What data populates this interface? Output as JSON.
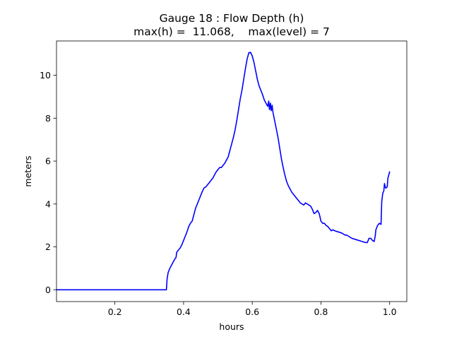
{
  "chart_data": {
    "type": "line",
    "title": "Gauge 18 : Flow Depth (h)",
    "subtitle": "max(h) =  11.068,    max(level) = 7",
    "xlabel": "hours",
    "ylabel": "meters",
    "xlim": [
      0.03,
      1.05
    ],
    "ylim": [
      -0.55,
      11.6
    ],
    "xticks": [
      0.2,
      0.4,
      0.6,
      0.8,
      1.0
    ],
    "xtick_labels": [
      "0.2",
      "0.4",
      "0.6",
      "0.8",
      "1.0"
    ],
    "yticks": [
      0,
      2,
      4,
      6,
      8,
      10
    ],
    "ytick_labels": [
      "0",
      "2",
      "4",
      "6",
      "8",
      "10"
    ],
    "grid": false,
    "series": [
      {
        "color": "#0000ff",
        "points": [
          [
            0.03,
            0.0
          ],
          [
            0.1,
            0.0
          ],
          [
            0.2,
            0.0
          ],
          [
            0.3,
            0.0
          ],
          [
            0.35,
            0.0
          ],
          [
            0.352,
            0.5
          ],
          [
            0.355,
            0.8
          ],
          [
            0.36,
            1.0
          ],
          [
            0.365,
            1.15
          ],
          [
            0.37,
            1.3
          ],
          [
            0.375,
            1.45
          ],
          [
            0.378,
            1.5
          ],
          [
            0.38,
            1.75
          ],
          [
            0.385,
            1.85
          ],
          [
            0.39,
            1.95
          ],
          [
            0.395,
            2.1
          ],
          [
            0.4,
            2.3
          ],
          [
            0.405,
            2.5
          ],
          [
            0.41,
            2.7
          ],
          [
            0.415,
            2.95
          ],
          [
            0.42,
            3.1
          ],
          [
            0.425,
            3.2
          ],
          [
            0.43,
            3.5
          ],
          [
            0.435,
            3.8
          ],
          [
            0.44,
            4.0
          ],
          [
            0.445,
            4.2
          ],
          [
            0.45,
            4.4
          ],
          [
            0.455,
            4.6
          ],
          [
            0.46,
            4.75
          ],
          [
            0.465,
            4.8
          ],
          [
            0.47,
            4.9
          ],
          [
            0.475,
            5.0
          ],
          [
            0.48,
            5.1
          ],
          [
            0.485,
            5.2
          ],
          [
            0.49,
            5.35
          ],
          [
            0.495,
            5.5
          ],
          [
            0.5,
            5.6
          ],
          [
            0.505,
            5.7
          ],
          [
            0.51,
            5.7
          ],
          [
            0.515,
            5.8
          ],
          [
            0.52,
            5.9
          ],
          [
            0.525,
            6.05
          ],
          [
            0.53,
            6.2
          ],
          [
            0.535,
            6.5
          ],
          [
            0.54,
            6.8
          ],
          [
            0.545,
            7.1
          ],
          [
            0.55,
            7.45
          ],
          [
            0.555,
            7.9
          ],
          [
            0.56,
            8.4
          ],
          [
            0.565,
            8.9
          ],
          [
            0.57,
            9.3
          ],
          [
            0.575,
            9.8
          ],
          [
            0.58,
            10.3
          ],
          [
            0.585,
            10.75
          ],
          [
            0.59,
            11.05
          ],
          [
            0.595,
            11.07
          ],
          [
            0.6,
            10.9
          ],
          [
            0.605,
            10.6
          ],
          [
            0.61,
            10.2
          ],
          [
            0.615,
            9.8
          ],
          [
            0.62,
            9.5
          ],
          [
            0.625,
            9.3
          ],
          [
            0.63,
            9.1
          ],
          [
            0.635,
            8.85
          ],
          [
            0.64,
            8.7
          ],
          [
            0.645,
            8.55
          ],
          [
            0.648,
            8.8
          ],
          [
            0.65,
            8.4
          ],
          [
            0.653,
            8.7
          ],
          [
            0.655,
            8.35
          ],
          [
            0.658,
            8.6
          ],
          [
            0.66,
            8.3
          ],
          [
            0.665,
            7.9
          ],
          [
            0.67,
            7.5
          ],
          [
            0.675,
            7.1
          ],
          [
            0.68,
            6.6
          ],
          [
            0.685,
            6.1
          ],
          [
            0.69,
            5.7
          ],
          [
            0.695,
            5.35
          ],
          [
            0.7,
            5.05
          ],
          [
            0.705,
            4.85
          ],
          [
            0.71,
            4.7
          ],
          [
            0.715,
            4.55
          ],
          [
            0.72,
            4.45
          ],
          [
            0.725,
            4.35
          ],
          [
            0.73,
            4.25
          ],
          [
            0.735,
            4.15
          ],
          [
            0.74,
            4.05
          ],
          [
            0.745,
            4.0
          ],
          [
            0.75,
            3.95
          ],
          [
            0.755,
            4.05
          ],
          [
            0.76,
            4.0
          ],
          [
            0.765,
            3.95
          ],
          [
            0.77,
            3.9
          ],
          [
            0.775,
            3.75
          ],
          [
            0.78,
            3.55
          ],
          [
            0.785,
            3.6
          ],
          [
            0.79,
            3.7
          ],
          [
            0.795,
            3.55
          ],
          [
            0.8,
            3.2
          ],
          [
            0.805,
            3.1
          ],
          [
            0.81,
            3.1
          ],
          [
            0.815,
            3.0
          ],
          [
            0.82,
            2.95
          ],
          [
            0.825,
            2.85
          ],
          [
            0.83,
            2.75
          ],
          [
            0.835,
            2.8
          ],
          [
            0.84,
            2.75
          ],
          [
            0.85,
            2.7
          ],
          [
            0.86,
            2.65
          ],
          [
            0.87,
            2.55
          ],
          [
            0.875,
            2.55
          ],
          [
            0.88,
            2.5
          ],
          [
            0.89,
            2.4
          ],
          [
            0.9,
            2.35
          ],
          [
            0.91,
            2.3
          ],
          [
            0.92,
            2.25
          ],
          [
            0.93,
            2.2
          ],
          [
            0.935,
            2.2
          ],
          [
            0.94,
            2.4
          ],
          [
            0.945,
            2.4
          ],
          [
            0.95,
            2.3
          ],
          [
            0.955,
            2.25
          ],
          [
            0.958,
            2.5
          ],
          [
            0.96,
            2.8
          ],
          [
            0.965,
            3.0
          ],
          [
            0.97,
            3.1
          ],
          [
            0.975,
            3.05
          ],
          [
            0.977,
            4.1
          ],
          [
            0.98,
            4.5
          ],
          [
            0.983,
            4.6
          ],
          [
            0.985,
            4.95
          ],
          [
            0.988,
            4.75
          ],
          [
            0.99,
            4.75
          ],
          [
            0.993,
            4.8
          ],
          [
            0.995,
            5.2
          ],
          [
            1.0,
            5.5
          ]
        ]
      }
    ]
  }
}
